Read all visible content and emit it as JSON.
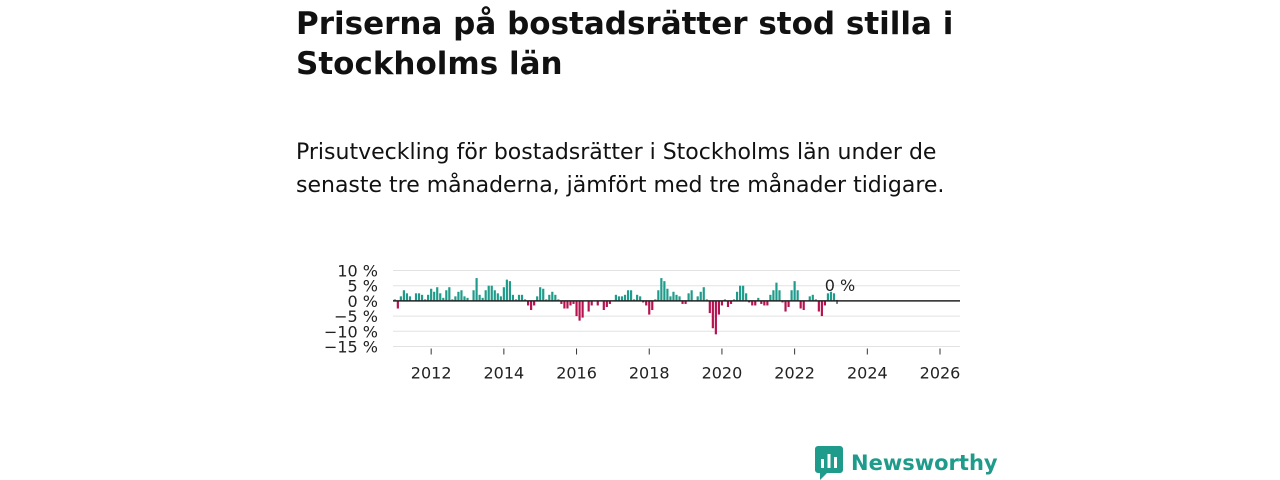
{
  "header": {
    "title": "Priserna på bostadsrätter stod stilla i Stockholms län",
    "subtitle": "Prisutveckling för bostadsrätter i Stockholms län under de senaste tre månaderna, jämfört med tre månader tidigare."
  },
  "brand": {
    "name": "Newsworthy"
  },
  "colors": {
    "positive": "#1e9b8a",
    "negative": "#b5134f",
    "grid": "#e2e2e2",
    "zero_line": "#222222"
  },
  "chart_data": {
    "type": "bar",
    "title": "Priserna på bostadsrätter stod stilla i Stockholms län",
    "ylabel": "",
    "xlabel": "",
    "ylim": [
      -15,
      10
    ],
    "yticks": [
      10,
      5,
      0,
      -5,
      -10,
      -15
    ],
    "ytick_labels": [
      "10 %",
      "5 %",
      "0 %",
      "−5 %",
      "−10 %",
      "−15 %"
    ],
    "xticks": [
      2012,
      2014,
      2016,
      2018,
      2020,
      2022,
      2024,
      2026
    ],
    "xtick_labels": [
      "2012",
      "2014",
      "2016",
      "2018",
      "2020",
      "2022",
      "2024",
      "2026"
    ],
    "x_start": "2011-01",
    "frequency": "monthly",
    "last_value_label": "0 %",
    "values": [
      0.5,
      -2.5,
      1.5,
      3.5,
      2.5,
      1.5,
      0,
      2.5,
      2.5,
      2,
      0.5,
      2,
      4,
      3,
      4.5,
      2.5,
      1,
      3.5,
      4.5,
      0.5,
      1.5,
      3,
      3.5,
      1.5,
      1,
      0,
      3.5,
      7.5,
      2,
      1,
      3.5,
      5,
      5,
      3.5,
      2.5,
      1.5,
      4.5,
      7,
      6.5,
      2,
      0.5,
      2,
      2,
      0.5,
      -1.5,
      -3,
      -1.5,
      1.5,
      4.5,
      4,
      0.5,
      2,
      3,
      2,
      0.5,
      -1,
      -2.5,
      -2.5,
      -1.5,
      -1,
      -5,
      -6.5,
      -5.5,
      0,
      -3.5,
      -1.5,
      0,
      -1.5,
      0,
      -3,
      -2,
      -1,
      0,
      2,
      1.5,
      1.5,
      2,
      3.5,
      3.5,
      0.5,
      2,
      1.5,
      -0.5,
      -1.5,
      -4.5,
      -3,
      0.5,
      3.5,
      7.5,
      6.5,
      4,
      1.5,
      3,
      2,
      1.5,
      -1,
      -1,
      2.5,
      3.5,
      0,
      1.5,
      3,
      4.5,
      0.5,
      -4,
      -9,
      -11,
      -4.5,
      -1.5,
      0.5,
      -2,
      -1,
      0.5,
      3,
      5,
      5,
      2.5,
      -0.5,
      -1.5,
      -1.5,
      1,
      -1,
      -1.5,
      -1.5,
      2,
      3.5,
      6,
      3.5,
      -0.5,
      -3.5,
      -2,
      3.5,
      6.5,
      3.5,
      -2.5,
      -3,
      0,
      1.5,
      2,
      0.5,
      -3.5,
      -5,
      -1.5,
      2.5,
      3,
      2.5,
      0
    ]
  }
}
